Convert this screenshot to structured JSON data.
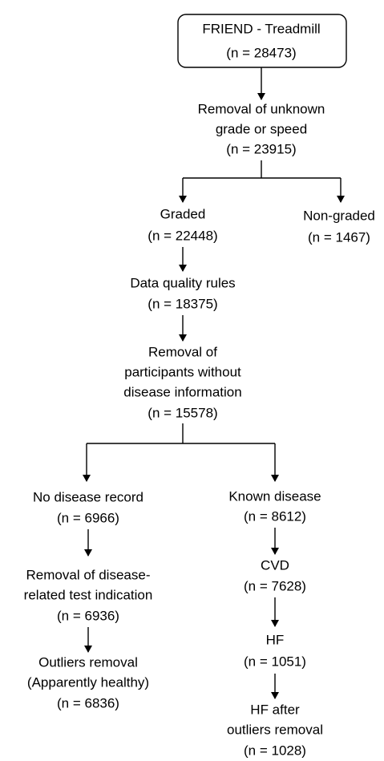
{
  "nodes": [
    {
      "lines": [
        "FRIEND - Treadmill",
        "(n = 28473)"
      ]
    },
    {
      "lines": [
        "Removal of unknown",
        "grade or speed",
        "(n = 23915)"
      ]
    },
    {
      "lines": [
        "Graded",
        "(n = 22448)"
      ]
    },
    {
      "lines": [
        "Non-graded",
        "(n = 1467)"
      ]
    },
    {
      "lines": [
        "Data quality rules",
        "(n = 18375)"
      ]
    },
    {
      "lines": [
        "Removal of",
        "participants without",
        "disease information",
        "(n = 15578)"
      ]
    },
    {
      "lines": [
        "No disease record",
        "(n = 6966)"
      ]
    },
    {
      "lines": [
        "Known disease",
        "(n = 8612)"
      ]
    },
    {
      "lines": [
        "Removal of disease-",
        "related test indication",
        "(n = 6936)"
      ]
    },
    {
      "lines": [
        "Outliers removal",
        "(Apparently healthy)",
        "(n = 6836)"
      ]
    },
    {
      "lines": [
        "CVD",
        "(n = 7628)"
      ]
    },
    {
      "lines": [
        "HF",
        "(n = 1051)"
      ]
    },
    {
      "lines": [
        "HF after",
        "outliers removal",
        "(n = 1028)"
      ]
    }
  ]
}
